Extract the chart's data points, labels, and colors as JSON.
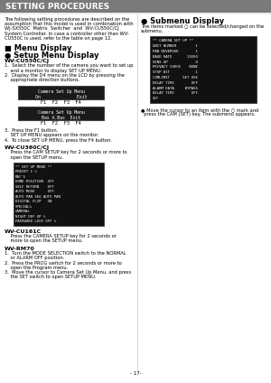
{
  "header_text": "SETTING PROCEDURES",
  "header_bg": "#7a7a7a",
  "header_text_color": "#ffffff",
  "page_bg": "#ffffff",
  "body_text_color": "#000000",
  "intro_text_left": [
    "The following setting procedures are described on the",
    "assumption that this model is used in combination with",
    "WJ-SX550C  Matrix  Switcher  and  WV-CU550C/CJ",
    "System Controller. In case a controller other than WV-",
    "CU550C is used, refer to the table on page 12."
  ],
  "submenu_title": "● Submenu Display",
  "submenu_text": [
    "The items marked ○ can be selected/changed on the",
    "submenu."
  ],
  "submenu_box_lines": [
    "** CAMERA SET UP **",
    "UNIT NUMBER         1",
    "PAN REVERSED        1",
    "BAUD RATE       19200",
    "SENS UP             0",
    "PRIVACY CHECK    NONE",
    "STOP BIT            1",
    "COMLIMIT      SET USE",
    "DELAY TIME        OFF",
    "ALARM DATA     BYPASS",
    "DELAY TIME        OFF",
    "SET"
  ],
  "submenu_note": "● Move the cursor to an item with the ○ mark and",
  "submenu_note2": "  press the CAM (SET) key. The submenu appears.",
  "menu_display_title": "■ Menu Display",
  "setup_menu_title": "● Setup Menu Display",
  "wv_cu550_title": "WV-CU550C/CJ",
  "wv_cu550_step1a": "1.  Select the number of the camera you want to set up",
  "wv_cu550_step1b": "    and a monitor to display SET UP MENU.",
  "wv_cu550_step2a": "2.  Display the D4 menu on the LCD by pressing the",
  "wv_cu550_step2b": "    appropriate direction buttons.",
  "lcd_box1_line1": "Camera Set Up Menu",
  "lcd_box1_line2": "On              Exit",
  "lcd_labels1": "F1    F2    F3    F4",
  "lcd_box2_line1": "Camera Set Up Menu",
  "lcd_box2_line2": "Bas A.Bas  Exit",
  "lcd_labels2": "F1    F2    F3    F4",
  "step3a": "3.  Press the F1 button.",
  "step3b": "    SET UP MENU appears on the monitor.",
  "step4": "4.  To close SET UP MENU, press the F4 button.",
  "wv_cu360_title": "WV-CU360C/CJ",
  "wv_cu360_step1": "    Press the CAM SETUP key for 2 seconds or more to",
  "wv_cu360_step2": "    open the SETUP menu.",
  "setup_box_lines": [
    "** SET UP MENU **",
    "PRESET 1 %",
    "DAY'S",
    "HOME POSITION  OFF",
    "SELF RETURN    OFF",
    "AUTO MODE      OFF",
    "AUTO PAN SEQ AUTO PAN",
    "DIGITAL FLIP   ON",
    "SPECIAL%",
    "CAMERA%",
    "NIGHT DEF UP %",
    "PASSWORD LOCK OFF %"
  ],
  "wv_cu161_title": "WV-CU161C",
  "wv_cu161_step1": "    Press the CAMERA SETUP key for 2 seconds or",
  "wv_cu161_step2": "    more to open the SETUP menu.",
  "wv_rm70_title": "WV-RM70",
  "wv_rm70_step1a": "1.  Turn the MODE SELECTION switch to the NORMAL",
  "wv_rm70_step1b": "    or ALARM OFF position.",
  "wv_rm70_step2a": "2.  Press the PROG switch for 2 seconds or more to",
  "wv_rm70_step2b": "    open the Program menu.",
  "wv_rm70_step3a": "3.  Move the cursor to Camera Set Up Menu, and press",
  "wv_rm70_step3b": "    the SET switch to open SETUP MENU.",
  "page_number": "- 17-"
}
